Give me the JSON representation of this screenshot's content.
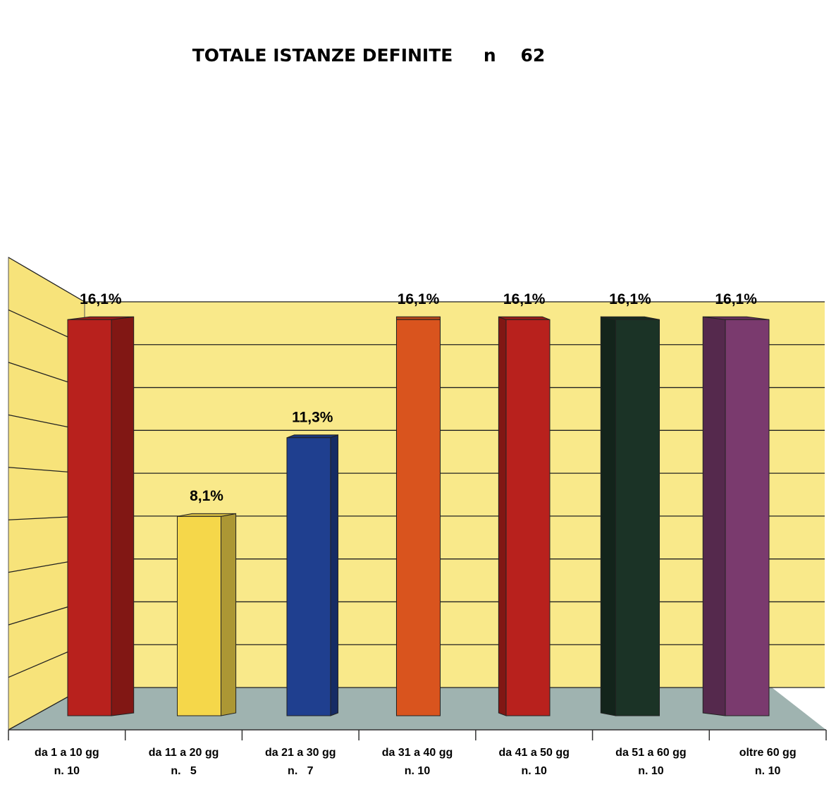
{
  "chart_data": {
    "type": "bar3d",
    "title": "TOTALE ISTANZE DEFINITE     n    62",
    "categories": [
      "da 1 a 10 gg",
      "da 11 a 20 gg",
      "da 21 a 30 gg",
      "da 31 a 40 gg",
      "da 41 a 50 gg",
      "da 51 a 60 gg",
      "oltre 60 gg"
    ],
    "category_counts": [
      "n. 10",
      "n.   5",
      "n.   7",
      "n. 10",
      "n. 10",
      "n. 10",
      "n. 10"
    ],
    "values": [
      16.1,
      8.1,
      11.3,
      16.1,
      16.1,
      16.1,
      16.1
    ],
    "value_labels": [
      "16,1%",
      "8,1%",
      "11,3%",
      "16,1%",
      "16,1%",
      "16,1%",
      "16,1%"
    ],
    "colors": [
      "#b8211d",
      "#f5d74a",
      "#1f3f8f",
      "#d9541e",
      "#b8211d",
      "#1b3326",
      "#7a3a6e"
    ],
    "ylim": [
      0,
      18
    ],
    "yticks": [
      0,
      2,
      4,
      6,
      8,
      10,
      12,
      14,
      16,
      18
    ],
    "grid": true
  }
}
